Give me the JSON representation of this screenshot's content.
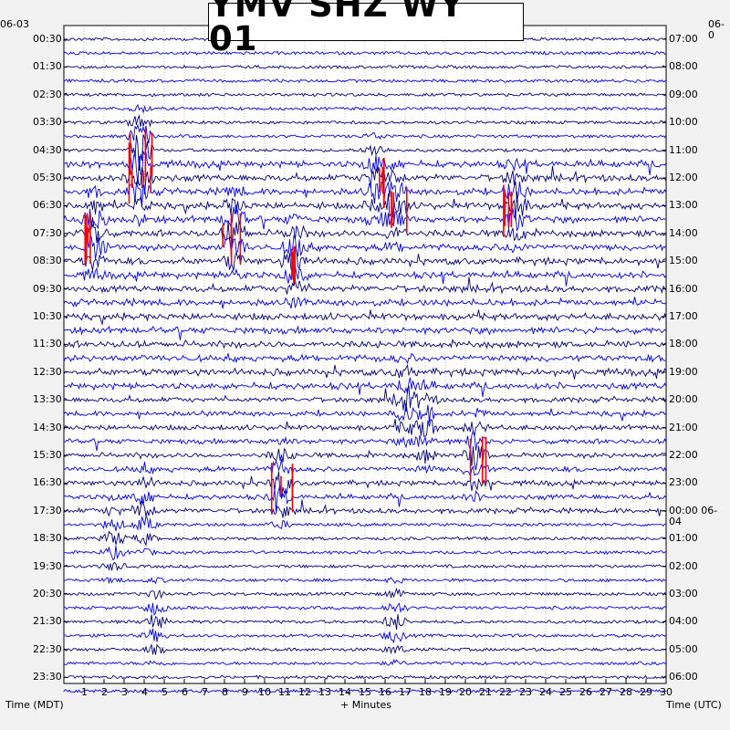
{
  "title": "YMV SHZ WY 01",
  "left_date": "06-03",
  "right_date": "06-0",
  "xlabel": "+ Minutes",
  "left_axis_title": "Time (MDT)",
  "right_axis_title": "Time (UTC)",
  "colors": {
    "trace_a": "#000080",
    "trace_b": "#0000ff",
    "highlight": "#ff0000",
    "background": "#ffffff",
    "page": "#f2f2f2"
  },
  "chart_data": {
    "type": "seismogram",
    "title": "YMV SHZ WY 01",
    "x": {
      "label": "+ Minutes",
      "range": [
        0,
        30
      ],
      "ticks": [
        "1",
        "2",
        "3",
        "4",
        "5",
        "6",
        "7",
        "8",
        "9",
        "10",
        "11",
        "12",
        "13",
        "14",
        "15",
        "16",
        "17",
        "18",
        "19",
        "20",
        "21",
        "22",
        "23",
        "24",
        "25",
        "26",
        "27",
        "28",
        "29",
        "30"
      ]
    },
    "left_labels": [
      "00:30",
      "01:30",
      "02:30",
      "03:30",
      "04:30",
      "05:30",
      "06:30",
      "07:30",
      "08:30",
      "09:30",
      "10:30",
      "11:30",
      "12:30",
      "13:30",
      "14:30",
      "15:30",
      "16:30",
      "17:30",
      "18:30",
      "19:30",
      "20:30",
      "21:30",
      "22:30",
      "23:30"
    ],
    "right_labels": [
      "07:00",
      "08:00",
      "09:00",
      "10:00",
      "11:00",
      "12:00",
      "13:00",
      "14:00",
      "15:00",
      "16:00",
      "17:00",
      "18:00",
      "19:00",
      "20:00",
      "21:00",
      "22:00",
      "23:00",
      "00:00 06-04",
      "01:00",
      "02:00",
      "03:00",
      "04:00",
      "05:00",
      "06:00"
    ],
    "trace_count": 48,
    "trace_colors": [
      "#000080",
      "#0000ff"
    ],
    "clip_color": "#ff0000",
    "activity": {
      "rows_per_hour": 2,
      "strong_events": [
        {
          "row": 8,
          "minute": 3.8,
          "level": 0.9
        },
        {
          "row": 10,
          "minute": 3.8,
          "level": 0.8
        },
        {
          "row": 10,
          "minute": 15.5,
          "level": 0.8
        },
        {
          "row": 12,
          "minute": 16.5,
          "level": 0.9
        },
        {
          "row": 12,
          "minute": 22.5,
          "level": 0.9
        },
        {
          "row": 14,
          "minute": 1.5,
          "level": 1.0
        },
        {
          "row": 14,
          "minute": 8.5,
          "level": 1.0
        },
        {
          "row": 16,
          "minute": 11.5,
          "level": 0.9
        },
        {
          "row": 26,
          "minute": 17,
          "level": 0.7
        },
        {
          "row": 28,
          "minute": 18,
          "level": 0.7
        },
        {
          "row": 30,
          "minute": 20.5,
          "level": 0.8
        },
        {
          "row": 32,
          "minute": 10.8,
          "level": 0.8
        },
        {
          "row": 34,
          "minute": 4,
          "level": 0.7
        },
        {
          "row": 36,
          "minute": 2.5,
          "level": 0.5
        },
        {
          "row": 42,
          "minute": 4.5,
          "level": 0.5
        },
        {
          "row": 42,
          "minute": 16.5,
          "level": 0.5
        }
      ]
    }
  }
}
